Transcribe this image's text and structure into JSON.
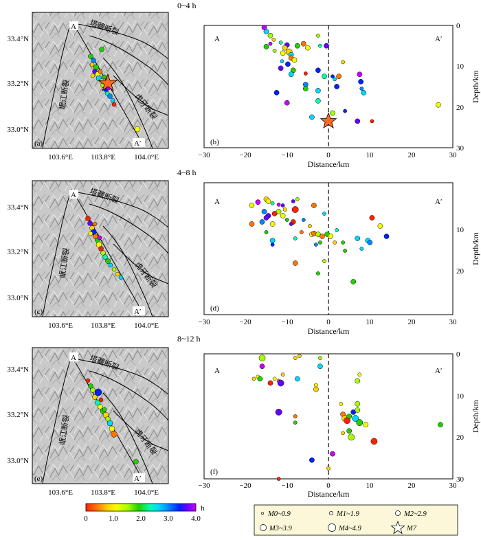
{
  "figure": {
    "rows": [
      {
        "time_label": "0~4 h",
        "map_panel_label": "(a)",
        "section_panel_label": "(b)"
      },
      {
        "time_label": "4~8 h",
        "map_panel_label": "(c)",
        "section_panel_label": "(d)"
      },
      {
        "time_label": "8~12 h",
        "map_panel_label": "(e)",
        "section_panel_label": "(f)"
      }
    ],
    "map": {
      "lat_ticks": [
        "33.4°N",
        "33.2°N",
        "33.0°N"
      ],
      "lon_ticks": [
        "103.6°E",
        "103.8°E",
        "104.0°E"
      ],
      "fault_names": [
        "岷江断裂",
        "塔藏断裂",
        "虎牙断裂"
      ],
      "profile_start": "A",
      "profile_end": "A′"
    },
    "section": {
      "xlabel": "Distance/km",
      "ylabel": "Depth/km",
      "x_ticks": [
        "−30",
        "−20",
        "−10",
        "0",
        "10",
        "20",
        "30"
      ],
      "y_ticks_top": [
        "0",
        "10",
        "20",
        "30"
      ],
      "y_ticks_row3": [
        "0",
        "10",
        "20",
        "30"
      ],
      "start_label": "A",
      "end_label": "A′"
    },
    "colorbar": {
      "ticks": [
        "0",
        "1.0",
        "2.0",
        "3.0",
        "4.0"
      ],
      "unit": "h",
      "colors": [
        "#ff2200",
        "#ff7700",
        "#ffd400",
        "#f5ff00",
        "#a6ff00",
        "#22d000",
        "#00ffb0",
        "#00d8ff",
        "#0088ff",
        "#0022ff",
        "#6600ff",
        "#c800ff"
      ]
    },
    "legend": {
      "items": [
        "M0~0.9",
        "M1~1.9",
        "M2~2.9",
        "M3~3.9",
        "M4~4.9",
        "M7"
      ]
    }
  },
  "chart_data": [
    {
      "type": "scatter",
      "title": "0~4 h",
      "xlabel": "Distance/km",
      "ylabel": "Depth/km",
      "xlim": [
        -30,
        30
      ],
      "ylim": [
        0,
        30
      ],
      "points": [
        {
          "x": -15.5,
          "y": 0.5,
          "hours": 3.8,
          "mag": 2
        },
        {
          "x": -15,
          "y": 1.5,
          "hours": 2.4,
          "mag": 2
        },
        {
          "x": -14,
          "y": 2.5,
          "hours": 1.6,
          "mag": 2
        },
        {
          "x": -13.2,
          "y": 3.5,
          "hours": 0.8,
          "mag": 1
        },
        {
          "x": -11.5,
          "y": 4.2,
          "hours": 2.0,
          "mag": 1
        },
        {
          "x": -10,
          "y": 4.8,
          "hours": 3.6,
          "mag": 2
        },
        {
          "x": -15,
          "y": 5.2,
          "hours": 1.8,
          "mag": 2
        },
        {
          "x": -10.5,
          "y": 5.5,
          "hours": 0.9,
          "mag": 2
        },
        {
          "x": -13,
          "y": 6.2,
          "hours": 1.4,
          "mag": 1
        },
        {
          "x": -11,
          "y": 6.8,
          "hours": 1.2,
          "mag": 2
        },
        {
          "x": -9.5,
          "y": 6.5,
          "hours": 0.7,
          "mag": 3
        },
        {
          "x": -9,
          "y": 7.2,
          "hours": 2.6,
          "mag": 2
        },
        {
          "x": -7.5,
          "y": 5,
          "hours": 1.8,
          "mag": 2
        },
        {
          "x": -6,
          "y": 4.5,
          "hours": 0.5,
          "mag": 2
        },
        {
          "x": -5,
          "y": 5.5,
          "hours": 1.0,
          "mag": 2
        },
        {
          "x": -2,
          "y": 5,
          "hours": 2.2,
          "mag": 1
        },
        {
          "x": -0.5,
          "y": 5,
          "hours": 3.4,
          "mag": 2
        },
        {
          "x": -9,
          "y": 8,
          "hours": 0.4,
          "mag": 2
        },
        {
          "x": -8.2,
          "y": 8.5,
          "hours": 1.3,
          "mag": 2
        },
        {
          "x": -11.2,
          "y": 8.8,
          "hours": 2.6,
          "mag": 1
        },
        {
          "x": -9.8,
          "y": 9.5,
          "hours": 3.0,
          "mag": 2
        },
        {
          "x": -11.5,
          "y": 10.5,
          "hours": 3.6,
          "mag": 2
        },
        {
          "x": -8.5,
          "y": 11,
          "hours": 1.8,
          "mag": 2
        },
        {
          "x": -9,
          "y": 12,
          "hours": 2.6,
          "mag": 2
        },
        {
          "x": -5.5,
          "y": 11.8,
          "hours": 0.3,
          "mag": 1
        },
        {
          "x": -2.5,
          "y": 11,
          "hours": 3.2,
          "mag": 2
        },
        {
          "x": -1,
          "y": 12.5,
          "hours": 2.0,
          "mag": 2
        },
        {
          "x": 1,
          "y": 12.5,
          "hours": 3.0,
          "mag": 1
        },
        {
          "x": 1.5,
          "y": 13.2,
          "hours": 2.4,
          "mag": 1
        },
        {
          "x": 2.5,
          "y": 12.5,
          "hours": 0.5,
          "mag": 2
        },
        {
          "x": 2,
          "y": 15,
          "hours": 3.2,
          "mag": 2
        },
        {
          "x": 3.5,
          "y": 9,
          "hours": 0.9,
          "mag": 1
        },
        {
          "x": 7.5,
          "y": 12,
          "hours": 3.8,
          "mag": 2
        },
        {
          "x": 7.8,
          "y": 13.8,
          "hours": 3.2,
          "mag": 2
        },
        {
          "x": 8,
          "y": 15.5,
          "hours": 2.8,
          "mag": 1
        },
        {
          "x": 8.5,
          "y": 16.5,
          "hours": 2.6,
          "mag": 2
        },
        {
          "x": -5.5,
          "y": 14.5,
          "hours": 2.8,
          "mag": 2
        },
        {
          "x": -5.5,
          "y": 15.5,
          "hours": 1.8,
          "mag": 2
        },
        {
          "x": -12.5,
          "y": 16.5,
          "hours": 3.0,
          "mag": 2
        },
        {
          "x": -10,
          "y": 19,
          "hours": 3.8,
          "mag": 2
        },
        {
          "x": -2.5,
          "y": 16,
          "hours": 2.6,
          "mag": 2
        },
        {
          "x": -2.5,
          "y": 18.5,
          "hours": 2.0,
          "mag": 2
        },
        {
          "x": -4,
          "y": 22.5,
          "hours": 2.6,
          "mag": 2
        },
        {
          "x": 1,
          "y": 21.5,
          "hours": 1.6,
          "mag": 2
        },
        {
          "x": 4,
          "y": 21,
          "hours": 3.0,
          "mag": 1
        },
        {
          "x": 7,
          "y": 23.5,
          "hours": 3.6,
          "mag": 2
        },
        {
          "x": 10.5,
          "y": 23.5,
          "hours": 0.2,
          "mag": 1
        },
        {
          "x": 26.5,
          "y": 19.5,
          "hours": 1.2,
          "mag": 2
        },
        {
          "x": -2.5,
          "y": 2.5,
          "hours": 1.6,
          "mag": 1
        },
        {
          "x": -14,
          "y": 4.5,
          "hours": 3.8,
          "mag": 1
        },
        {
          "x": 0,
          "y": 23.5,
          "hours": 0,
          "mag": 7
        }
      ]
    },
    {
      "type": "scatter",
      "title": "4~8 h",
      "xlabel": "Distance/km",
      "ylabel": "Depth/km",
      "xlim": [
        -30,
        30
      ],
      "ylim": [
        0,
        30
      ],
      "points": [
        {
          "x": -18.5,
          "y": 4,
          "hours": 1.2,
          "mag": 2
        },
        {
          "x": -17,
          "y": 3.2,
          "hours": 3.8,
          "mag": 2
        },
        {
          "x": -15,
          "y": 2.5,
          "hours": 0.9,
          "mag": 2
        },
        {
          "x": -14.5,
          "y": 3,
          "hours": 1.3,
          "mag": 2
        },
        {
          "x": -13.5,
          "y": 3.5,
          "hours": 2.2,
          "mag": 1
        },
        {
          "x": -12,
          "y": 3.8,
          "hours": 3.8,
          "mag": 1
        },
        {
          "x": -11,
          "y": 4,
          "hours": 3.6,
          "mag": 1
        },
        {
          "x": -8.5,
          "y": 3,
          "hours": 3.4,
          "mag": 1
        },
        {
          "x": -7.5,
          "y": 2.5,
          "hours": 1.6,
          "mag": 1
        },
        {
          "x": -3.5,
          "y": 4,
          "hours": 0.4,
          "mag": 2
        },
        {
          "x": -15.5,
          "y": 5.5,
          "hours": 2.8,
          "mag": 2
        },
        {
          "x": -14.5,
          "y": 6.5,
          "hours": 3.6,
          "mag": 2
        },
        {
          "x": -13,
          "y": 6,
          "hours": 0.3,
          "mag": 2
        },
        {
          "x": -11,
          "y": 6.5,
          "hours": 1.0,
          "mag": 2
        },
        {
          "x": -12,
          "y": 5.5,
          "hours": 1.6,
          "mag": 2
        },
        {
          "x": -10.5,
          "y": 5,
          "hours": 0.8,
          "mag": 1
        },
        {
          "x": -10,
          "y": 7.5,
          "hours": 1.8,
          "mag": 1
        },
        {
          "x": -8.5,
          "y": 8,
          "hours": 0.2,
          "mag": 2
        },
        {
          "x": -18.5,
          "y": 8.5,
          "hours": 0.4,
          "mag": 2
        },
        {
          "x": -16,
          "y": 8,
          "hours": 2.8,
          "mag": 2
        },
        {
          "x": -15,
          "y": 7,
          "hours": 3.5,
          "mag": 2
        },
        {
          "x": -13.5,
          "y": 8.5,
          "hours": 1.1,
          "mag": 2
        },
        {
          "x": -9,
          "y": 8.5,
          "hours": 3.6,
          "mag": 1
        },
        {
          "x": -6,
          "y": 7.5,
          "hours": 2.8,
          "mag": 1
        },
        {
          "x": -4.5,
          "y": 9,
          "hours": 0.7,
          "mag": 1
        },
        {
          "x": -1,
          "y": 6,
          "hours": 2.6,
          "mag": 1
        },
        {
          "x": -15,
          "y": 10.5,
          "hours": 1.9,
          "mag": 1
        },
        {
          "x": -13.5,
          "y": 12.5,
          "hours": 2.6,
          "mag": 2
        },
        {
          "x": -13.5,
          "y": 13.5,
          "hours": 3.0,
          "mag": 1
        },
        {
          "x": -8,
          "y": 12,
          "hours": 2.0,
          "mag": 1
        },
        {
          "x": -6.5,
          "y": 10.5,
          "hours": 0.6,
          "mag": 1
        },
        {
          "x": -4,
          "y": 11,
          "hours": 1.3,
          "mag": 2
        },
        {
          "x": -3.5,
          "y": 10.8,
          "hours": 0.5,
          "mag": 2
        },
        {
          "x": -2.5,
          "y": 11,
          "hours": 1.5,
          "mag": 2
        },
        {
          "x": -1.5,
          "y": 11.5,
          "hours": 0.4,
          "mag": 2
        },
        {
          "x": -0.3,
          "y": 11,
          "hours": 1.8,
          "mag": 2
        },
        {
          "x": 0.5,
          "y": 11.5,
          "hours": 1.0,
          "mag": 2
        },
        {
          "x": -2,
          "y": 13,
          "hours": 1.9,
          "mag": 1
        },
        {
          "x": -3,
          "y": 13.5,
          "hours": 2.8,
          "mag": 1
        },
        {
          "x": 1.5,
          "y": 13,
          "hours": 0.9,
          "mag": 1
        },
        {
          "x": 2,
          "y": 10,
          "hours": 2.2,
          "mag": 1
        },
        {
          "x": 3.5,
          "y": 13,
          "hours": 1.8,
          "mag": 1
        },
        {
          "x": 4,
          "y": 15,
          "hours": 1.7,
          "mag": 1
        },
        {
          "x": 7,
          "y": 12,
          "hours": 2.6,
          "mag": 2
        },
        {
          "x": 8,
          "y": 14.5,
          "hours": 2.4,
          "mag": 1
        },
        {
          "x": 9.5,
          "y": 12.5,
          "hours": 2.6,
          "mag": 2
        },
        {
          "x": 10,
          "y": 13,
          "hours": 2.8,
          "mag": 2
        },
        {
          "x": 10.5,
          "y": 7,
          "hours": 0.2,
          "mag": 2
        },
        {
          "x": 12.5,
          "y": 9,
          "hours": 1.2,
          "mag": 2
        },
        {
          "x": 14,
          "y": 11.5,
          "hours": 3.2,
          "mag": 2
        },
        {
          "x": -8,
          "y": 18,
          "hours": 0.4,
          "mag": 2
        },
        {
          "x": -1,
          "y": 17.5,
          "hours": 1.4,
          "mag": 1
        },
        {
          "x": -2.5,
          "y": 20.5,
          "hours": 1.8,
          "mag": 1
        },
        {
          "x": 6,
          "y": 22.5,
          "hours": 1.8,
          "mag": 2
        },
        {
          "x": -8,
          "y": 5,
          "hours": 0.3,
          "mag": 3
        }
      ]
    },
    {
      "type": "scatter",
      "title": "8~12 h",
      "xlabel": "Distance/km",
      "ylabel": "Depth/km",
      "xlim": [
        -30,
        30
      ],
      "ylim": [
        0,
        30
      ],
      "points": [
        {
          "x": -16,
          "y": 1,
          "hours": 1.6,
          "mag": 3
        },
        {
          "x": -8,
          "y": 1,
          "hours": 0.8,
          "mag": 1
        },
        {
          "x": -7,
          "y": 0.5,
          "hours": 0.9,
          "mag": 1
        },
        {
          "x": -2,
          "y": 1,
          "hours": 1.6,
          "mag": 1
        },
        {
          "x": -16,
          "y": 3,
          "hours": 3.8,
          "mag": 2
        },
        {
          "x": -17,
          "y": 5.5,
          "hours": 1.2,
          "mag": 1
        },
        {
          "x": -16.5,
          "y": 6,
          "hours": 1.8,
          "mag": 2
        },
        {
          "x": -18,
          "y": 6,
          "hours": 0.9,
          "mag": 1
        },
        {
          "x": -13,
          "y": 6,
          "hours": 1.3,
          "mag": 1
        },
        {
          "x": -12,
          "y": 6.5,
          "hours": 0.6,
          "mag": 1
        },
        {
          "x": -11,
          "y": 5,
          "hours": 0.9,
          "mag": 1
        },
        {
          "x": -14,
          "y": 7,
          "hours": 0.3,
          "mag": 2
        },
        {
          "x": -11.5,
          "y": 7,
          "hours": 3.4,
          "mag": 3
        },
        {
          "x": -7.5,
          "y": 6,
          "hours": 2.4,
          "mag": 2
        },
        {
          "x": -2,
          "y": 3,
          "hours": 2.4,
          "mag": 2
        },
        {
          "x": -3,
          "y": 8.5,
          "hours": 0.7,
          "mag": 2
        },
        {
          "x": -3,
          "y": 7.5,
          "hours": 1.2,
          "mag": 1
        },
        {
          "x": 7,
          "y": 6.5,
          "hours": 1.6,
          "mag": 2
        },
        {
          "x": 7.5,
          "y": 5,
          "hours": 1.2,
          "mag": 1
        },
        {
          "x": -12,
          "y": 14,
          "hours": 3.4,
          "mag": 3
        },
        {
          "x": -8,
          "y": 15,
          "hours": 0.4,
          "mag": 1
        },
        {
          "x": -8,
          "y": 16.5,
          "hours": 1.8,
          "mag": 1
        },
        {
          "x": 3,
          "y": 12,
          "hours": 1.2,
          "mag": 1
        },
        {
          "x": 3.5,
          "y": 14.5,
          "hours": 0.6,
          "mag": 2
        },
        {
          "x": 4,
          "y": 15.5,
          "hours": 0.8,
          "mag": 3
        },
        {
          "x": 4.5,
          "y": 16,
          "hours": 0.2,
          "mag": 3
        },
        {
          "x": 5,
          "y": 15,
          "hours": 1.9,
          "mag": 2
        },
        {
          "x": 6,
          "y": 14,
          "hours": 3.0,
          "mag": 2
        },
        {
          "x": 6.5,
          "y": 15.5,
          "hours": 2.6,
          "mag": 3
        },
        {
          "x": 7,
          "y": 13.5,
          "hours": 1.4,
          "mag": 2
        },
        {
          "x": 7,
          "y": 12,
          "hours": 1.6,
          "mag": 2
        },
        {
          "x": 7.5,
          "y": 16.5,
          "hours": 1.7,
          "mag": 3
        },
        {
          "x": 5,
          "y": 18.5,
          "hours": 1.8,
          "mag": 2
        },
        {
          "x": 3.5,
          "y": 19,
          "hours": 0.8,
          "mag": 1
        },
        {
          "x": 5.5,
          "y": 20,
          "hours": 1.5,
          "mag": 3
        },
        {
          "x": 9,
          "y": 17,
          "hours": 1.0,
          "mag": 2
        },
        {
          "x": 11,
          "y": 21,
          "hours": 0.2,
          "mag": 3
        },
        {
          "x": 27,
          "y": 17,
          "hours": 1.8,
          "mag": 2
        },
        {
          "x": -4,
          "y": 25.5,
          "hours": 3.0,
          "mag": 2
        },
        {
          "x": 1,
          "y": 24,
          "hours": 3.8,
          "mag": 2
        },
        {
          "x": 0,
          "y": 27.5,
          "hours": 0.7,
          "mag": 1
        },
        {
          "x": -12,
          "y": 30,
          "hours": 0.2,
          "mag": 1
        }
      ]
    }
  ]
}
